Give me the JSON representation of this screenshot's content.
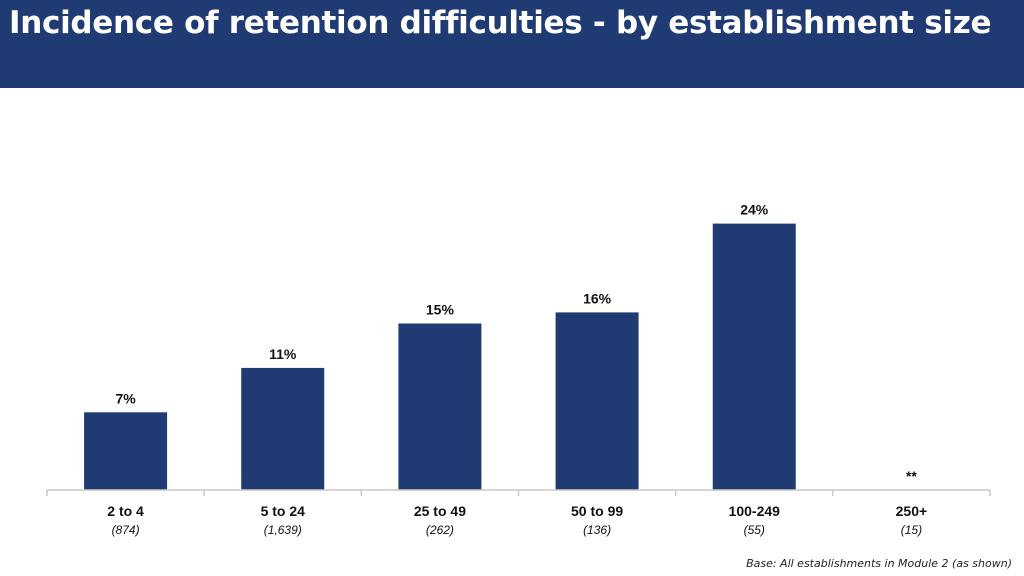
{
  "title": "Incidence of retention difficulties - by establishment size",
  "footnote": "Base: All establishments in Module 2 (as shown)",
  "colors": {
    "title_band": "#203a74",
    "bar": "#203a74",
    "axis": "#c8c8c8"
  },
  "chart_data": {
    "type": "bar",
    "title": "Incidence of retention difficulties - by establishment size",
    "xlabel": "",
    "ylabel": "",
    "categories": [
      "2 to 4",
      "5 to 24",
      "25 to 49",
      "50 to 99",
      "100-249",
      "250+"
    ],
    "bases": [
      "(874)",
      "(1,639)",
      "(262)",
      "(136)",
      "(55)",
      "(15)"
    ],
    "values": [
      7,
      11,
      15,
      16,
      24,
      null
    ],
    "value_labels": [
      "7%",
      "11%",
      "15%",
      "16%",
      "24%",
      "**"
    ],
    "unit": "%",
    "ylim": [
      0,
      30
    ],
    "grid": false,
    "legend": "none"
  }
}
